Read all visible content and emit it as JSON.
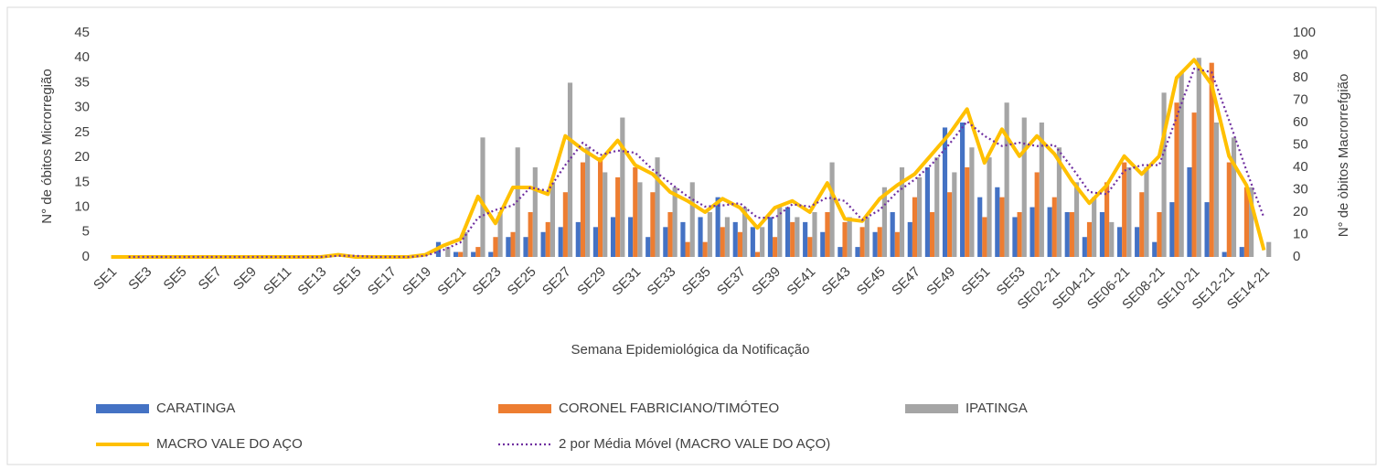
{
  "chart_data": {
    "type": "bar",
    "x_label": "Semana Epidemiológica da Notificação",
    "y_label": "N° de óbitos Microrregião",
    "y2_label": "N° de òbitos Macrorrefgião",
    "categories": [
      "SE1",
      null,
      "SE3",
      null,
      "SE5",
      null,
      "SE7",
      null,
      "SE9",
      null,
      "SE11",
      null,
      "SE13",
      null,
      "SE15",
      null,
      "SE17",
      null,
      "SE19",
      null,
      "SE21",
      null,
      "SE23",
      null,
      "SE25",
      null,
      "SE27",
      null,
      "SE29",
      null,
      "SE31",
      null,
      "SE33",
      null,
      "SE35",
      null,
      "SE37",
      null,
      "SE39",
      null,
      "SE41",
      null,
      "SE43",
      null,
      "SE45",
      null,
      "SE47",
      null,
      "SE49",
      null,
      "SE51",
      null,
      "SE53",
      null,
      "SE02-21",
      null,
      "SE04-21",
      null,
      "SE06-21",
      null,
      "SE08-21",
      null,
      "SE10-21",
      null,
      "SE12-21",
      null,
      "SE14-21"
    ],
    "ylim": [
      0,
      45
    ],
    "yticks": [
      0,
      5,
      10,
      15,
      20,
      25,
      30,
      35,
      40,
      45
    ],
    "y2lim": [
      0,
      100
    ],
    "y2ticks": [
      0,
      10,
      20,
      30,
      40,
      50,
      60,
      70,
      80,
      90,
      100
    ],
    "series": [
      {
        "name": "CARATINGA",
        "color": "#4472c4",
        "kind": "bar",
        "values": [
          0,
          0,
          0,
          0,
          0,
          0,
          0,
          0,
          0,
          0,
          0,
          0,
          0,
          0,
          0,
          0,
          0,
          0,
          0,
          3,
          1,
          1,
          1,
          4,
          4,
          5,
          6,
          7,
          6,
          8,
          8,
          4,
          6,
          7,
          8,
          12,
          7,
          6,
          8,
          10,
          7,
          5,
          2,
          2,
          5,
          9,
          7,
          18,
          26,
          27,
          12,
          14,
          8,
          10,
          10,
          9,
          4,
          9,
          6,
          6,
          3,
          11,
          18,
          11,
          1,
          2,
          0
        ]
      },
      {
        "name": "CORONEL FABRICIANO/TIMÓTEO",
        "color": "#ed7d31",
        "kind": "bar",
        "values": [
          0,
          0,
          0,
          0,
          0,
          0,
          0,
          0,
          0,
          0,
          0,
          0,
          0,
          0,
          0,
          0,
          0,
          0,
          0,
          0,
          1,
          2,
          4,
          5,
          9,
          7,
          13,
          19,
          20,
          16,
          18,
          13,
          9,
          3,
          3,
          6,
          5,
          1,
          4,
          7,
          4,
          9,
          7,
          6,
          6,
          5,
          12,
          9,
          13,
          18,
          8,
          12,
          9,
          17,
          12,
          9,
          7,
          15,
          19,
          13,
          9,
          31,
          29,
          39,
          19,
          14,
          0
        ]
      },
      {
        "name": "IPATINGA",
        "color": "#a5a5a5",
        "kind": "bar",
        "values": [
          0,
          0,
          0,
          0,
          0,
          0,
          0,
          0,
          0,
          0,
          0,
          0,
          0,
          0,
          0,
          0,
          0,
          0,
          0,
          2,
          5,
          24,
          9,
          22,
          18,
          15,
          35,
          22,
          17,
          28,
          15,
          20,
          14,
          15,
          9,
          8,
          10,
          6,
          10,
          8,
          9,
          19,
          8,
          8,
          14,
          18,
          16,
          20,
          17,
          22,
          20,
          31,
          28,
          27,
          22,
          15,
          12,
          7,
          18,
          18,
          33,
          37,
          40,
          27,
          24,
          14,
          3
        ]
      },
      {
        "name": "MACRO VALE DO AÇO",
        "color": "#ffc000",
        "kind": "line",
        "axis": "y2",
        "values": [
          0,
          0,
          0,
          0,
          0,
          0,
          0,
          0,
          0,
          0,
          0,
          0,
          0,
          1,
          0,
          0,
          0,
          0,
          1,
          5,
          8,
          27,
          15,
          31,
          31,
          28,
          54,
          48,
          43,
          52,
          41,
          37,
          29,
          25,
          20,
          26,
          22,
          13,
          22,
          25,
          20,
          33,
          17,
          16,
          26,
          32,
          37,
          46,
          55,
          66,
          42,
          57,
          45,
          54,
          46,
          34,
          24,
          32,
          45,
          37,
          45,
          80,
          88,
          77,
          45,
          32,
          3
        ]
      },
      {
        "name": "2 por Média Móvel (MACRO VALE DO AÇO)",
        "color": "#7030a0",
        "kind": "dotted",
        "axis": "y2",
        "values": [
          null,
          0,
          0,
          0,
          0,
          0,
          0,
          0,
          0,
          0,
          0,
          0,
          0,
          0.5,
          0.5,
          0,
          0,
          0,
          0.5,
          3,
          6.5,
          17.5,
          21,
          23,
          31,
          29.5,
          41,
          51,
          45.5,
          47.5,
          46.5,
          39,
          33,
          27,
          22.5,
          23,
          24,
          17.5,
          17.5,
          23.5,
          22.5,
          26.5,
          25,
          16.5,
          21,
          29,
          34.5,
          41.5,
          50.5,
          60.5,
          54,
          49.5,
          51,
          49.5,
          50,
          40,
          29,
          28,
          38.5,
          41,
          41,
          62.5,
          84,
          82.5,
          61,
          38.5,
          17.5
        ]
      }
    ]
  }
}
